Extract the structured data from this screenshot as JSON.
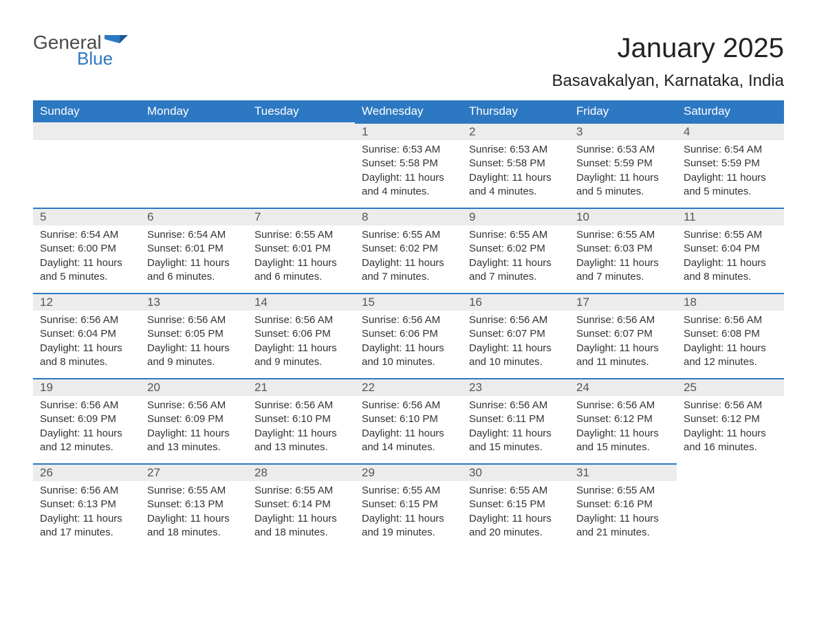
{
  "logo": {
    "text_general": "General",
    "text_blue": "Blue",
    "flag_color": "#2d78c2"
  },
  "title": "January 2025",
  "subtitle": "Basavakalyan, Karnataka, India",
  "colors": {
    "header_bg": "#2d78c2",
    "header_text": "#ffffff",
    "daynum_bg": "#ececec",
    "daynum_border": "#2d78c2",
    "body_text": "#333333",
    "page_bg": "#ffffff"
  },
  "day_headers": [
    "Sunday",
    "Monday",
    "Tuesday",
    "Wednesday",
    "Thursday",
    "Friday",
    "Saturday"
  ],
  "weeks": [
    [
      null,
      null,
      null,
      {
        "n": "1",
        "sunrise": "Sunrise: 6:53 AM",
        "sunset": "Sunset: 5:58 PM",
        "daylight": "Daylight: 11 hours and 4 minutes."
      },
      {
        "n": "2",
        "sunrise": "Sunrise: 6:53 AM",
        "sunset": "Sunset: 5:58 PM",
        "daylight": "Daylight: 11 hours and 4 minutes."
      },
      {
        "n": "3",
        "sunrise": "Sunrise: 6:53 AM",
        "sunset": "Sunset: 5:59 PM",
        "daylight": "Daylight: 11 hours and 5 minutes."
      },
      {
        "n": "4",
        "sunrise": "Sunrise: 6:54 AM",
        "sunset": "Sunset: 5:59 PM",
        "daylight": "Daylight: 11 hours and 5 minutes."
      }
    ],
    [
      {
        "n": "5",
        "sunrise": "Sunrise: 6:54 AM",
        "sunset": "Sunset: 6:00 PM",
        "daylight": "Daylight: 11 hours and 5 minutes."
      },
      {
        "n": "6",
        "sunrise": "Sunrise: 6:54 AM",
        "sunset": "Sunset: 6:01 PM",
        "daylight": "Daylight: 11 hours and 6 minutes."
      },
      {
        "n": "7",
        "sunrise": "Sunrise: 6:55 AM",
        "sunset": "Sunset: 6:01 PM",
        "daylight": "Daylight: 11 hours and 6 minutes."
      },
      {
        "n": "8",
        "sunrise": "Sunrise: 6:55 AM",
        "sunset": "Sunset: 6:02 PM",
        "daylight": "Daylight: 11 hours and 7 minutes."
      },
      {
        "n": "9",
        "sunrise": "Sunrise: 6:55 AM",
        "sunset": "Sunset: 6:02 PM",
        "daylight": "Daylight: 11 hours and 7 minutes."
      },
      {
        "n": "10",
        "sunrise": "Sunrise: 6:55 AM",
        "sunset": "Sunset: 6:03 PM",
        "daylight": "Daylight: 11 hours and 7 minutes."
      },
      {
        "n": "11",
        "sunrise": "Sunrise: 6:55 AM",
        "sunset": "Sunset: 6:04 PM",
        "daylight": "Daylight: 11 hours and 8 minutes."
      }
    ],
    [
      {
        "n": "12",
        "sunrise": "Sunrise: 6:56 AM",
        "sunset": "Sunset: 6:04 PM",
        "daylight": "Daylight: 11 hours and 8 minutes."
      },
      {
        "n": "13",
        "sunrise": "Sunrise: 6:56 AM",
        "sunset": "Sunset: 6:05 PM",
        "daylight": "Daylight: 11 hours and 9 minutes."
      },
      {
        "n": "14",
        "sunrise": "Sunrise: 6:56 AM",
        "sunset": "Sunset: 6:06 PM",
        "daylight": "Daylight: 11 hours and 9 minutes."
      },
      {
        "n": "15",
        "sunrise": "Sunrise: 6:56 AM",
        "sunset": "Sunset: 6:06 PM",
        "daylight": "Daylight: 11 hours and 10 minutes."
      },
      {
        "n": "16",
        "sunrise": "Sunrise: 6:56 AM",
        "sunset": "Sunset: 6:07 PM",
        "daylight": "Daylight: 11 hours and 10 minutes."
      },
      {
        "n": "17",
        "sunrise": "Sunrise: 6:56 AM",
        "sunset": "Sunset: 6:07 PM",
        "daylight": "Daylight: 11 hours and 11 minutes."
      },
      {
        "n": "18",
        "sunrise": "Sunrise: 6:56 AM",
        "sunset": "Sunset: 6:08 PM",
        "daylight": "Daylight: 11 hours and 12 minutes."
      }
    ],
    [
      {
        "n": "19",
        "sunrise": "Sunrise: 6:56 AM",
        "sunset": "Sunset: 6:09 PM",
        "daylight": "Daylight: 11 hours and 12 minutes."
      },
      {
        "n": "20",
        "sunrise": "Sunrise: 6:56 AM",
        "sunset": "Sunset: 6:09 PM",
        "daylight": "Daylight: 11 hours and 13 minutes."
      },
      {
        "n": "21",
        "sunrise": "Sunrise: 6:56 AM",
        "sunset": "Sunset: 6:10 PM",
        "daylight": "Daylight: 11 hours and 13 minutes."
      },
      {
        "n": "22",
        "sunrise": "Sunrise: 6:56 AM",
        "sunset": "Sunset: 6:10 PM",
        "daylight": "Daylight: 11 hours and 14 minutes."
      },
      {
        "n": "23",
        "sunrise": "Sunrise: 6:56 AM",
        "sunset": "Sunset: 6:11 PM",
        "daylight": "Daylight: 11 hours and 15 minutes."
      },
      {
        "n": "24",
        "sunrise": "Sunrise: 6:56 AM",
        "sunset": "Sunset: 6:12 PM",
        "daylight": "Daylight: 11 hours and 15 minutes."
      },
      {
        "n": "25",
        "sunrise": "Sunrise: 6:56 AM",
        "sunset": "Sunset: 6:12 PM",
        "daylight": "Daylight: 11 hours and 16 minutes."
      }
    ],
    [
      {
        "n": "26",
        "sunrise": "Sunrise: 6:56 AM",
        "sunset": "Sunset: 6:13 PM",
        "daylight": "Daylight: 11 hours and 17 minutes."
      },
      {
        "n": "27",
        "sunrise": "Sunrise: 6:55 AM",
        "sunset": "Sunset: 6:13 PM",
        "daylight": "Daylight: 11 hours and 18 minutes."
      },
      {
        "n": "28",
        "sunrise": "Sunrise: 6:55 AM",
        "sunset": "Sunset: 6:14 PM",
        "daylight": "Daylight: 11 hours and 18 minutes."
      },
      {
        "n": "29",
        "sunrise": "Sunrise: 6:55 AM",
        "sunset": "Sunset: 6:15 PM",
        "daylight": "Daylight: 11 hours and 19 minutes."
      },
      {
        "n": "30",
        "sunrise": "Sunrise: 6:55 AM",
        "sunset": "Sunset: 6:15 PM",
        "daylight": "Daylight: 11 hours and 20 minutes."
      },
      {
        "n": "31",
        "sunrise": "Sunrise: 6:55 AM",
        "sunset": "Sunset: 6:16 PM",
        "daylight": "Daylight: 11 hours and 21 minutes."
      },
      null
    ]
  ]
}
